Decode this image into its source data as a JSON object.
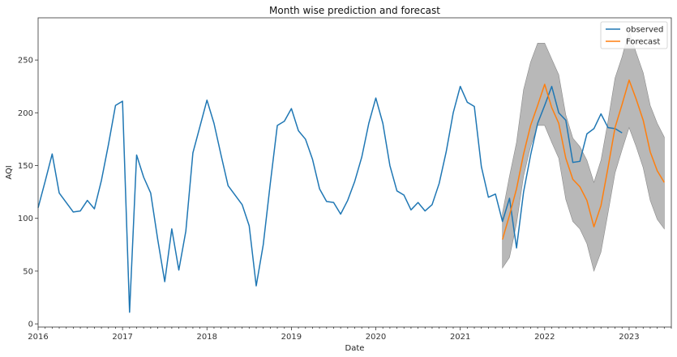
{
  "chart_data": {
    "type": "line",
    "title": "Month wise prediction and forecast",
    "xlabel": "Date",
    "ylabel": "AQI",
    "xlim": [
      "2016-01",
      "2023-07"
    ],
    "ylim": [
      -3,
      290
    ],
    "x_ticks": [
      "2016",
      "2017",
      "2018",
      "2019",
      "2020",
      "2021",
      "2022",
      "2023"
    ],
    "y_ticks": [
      "0",
      "50",
      "100",
      "150",
      "200",
      "250"
    ],
    "legend_position": "top-right",
    "colors": {
      "observed": "#1f77b4",
      "forecast": "#ff7f0e",
      "band": "#a0a0a0"
    },
    "series": [
      {
        "name": "observed",
        "x": [
          "2016-01",
          "2016-02",
          "2016-03",
          "2016-04",
          "2016-05",
          "2016-06",
          "2016-07",
          "2016-08",
          "2016-09",
          "2016-10",
          "2016-11",
          "2016-12",
          "2017-01",
          "2017-02",
          "2017-03",
          "2017-04",
          "2017-05",
          "2017-06",
          "2017-07",
          "2017-08",
          "2017-09",
          "2017-10",
          "2017-11",
          "2017-12",
          "2018-01",
          "2018-02",
          "2018-03",
          "2018-04",
          "2018-05",
          "2018-06",
          "2018-07",
          "2018-08",
          "2018-09",
          "2018-10",
          "2018-11",
          "2018-12",
          "2019-01",
          "2019-02",
          "2019-03",
          "2019-04",
          "2019-05",
          "2019-06",
          "2019-07",
          "2019-08",
          "2019-09",
          "2019-10",
          "2019-11",
          "2019-12",
          "2020-01",
          "2020-02",
          "2020-03",
          "2020-04",
          "2020-05",
          "2020-06",
          "2020-07",
          "2020-08",
          "2020-09",
          "2020-10",
          "2020-11",
          "2020-12",
          "2021-01",
          "2021-02",
          "2021-03",
          "2021-04",
          "2021-05",
          "2021-06",
          "2021-07",
          "2021-08",
          "2021-09",
          "2021-10",
          "2021-11",
          "2021-12",
          "2022-01",
          "2022-02",
          "2022-03",
          "2022-04",
          "2022-05",
          "2022-06",
          "2022-07",
          "2022-08",
          "2022-09",
          "2022-10",
          "2022-11",
          "2022-12"
        ],
        "values": [
          110,
          135,
          161,
          124,
          115,
          106,
          107,
          117,
          109,
          136,
          170,
          207,
          211,
          11,
          160,
          139,
          124,
          80,
          40,
          90,
          51,
          88,
          162,
          187,
          212,
          190,
          160,
          131,
          122,
          113,
          93,
          36,
          75,
          133,
          188,
          192,
          204,
          183,
          175,
          156,
          128,
          116,
          115,
          104,
          117,
          135,
          158,
          190,
          214,
          190,
          150,
          126,
          122,
          108,
          115,
          107,
          113,
          133,
          163,
          200,
          225,
          210,
          206,
          149,
          120,
          123,
          97,
          119,
          72,
          125,
          160,
          190,
          207,
          225,
          200,
          193,
          153,
          154,
          180,
          185,
          199,
          186,
          185,
          181
        ]
      },
      {
        "name": "Forecast",
        "x": [
          "2021-07",
          "2021-08",
          "2021-09",
          "2021-10",
          "2021-11",
          "2021-12",
          "2022-01",
          "2022-02",
          "2022-03",
          "2022-04",
          "2022-05",
          "2022-06",
          "2022-07",
          "2022-08",
          "2022-09",
          "2022-10",
          "2022-11",
          "2022-12",
          "2023-01",
          "2023-02",
          "2023-03",
          "2023-04",
          "2023-05",
          "2023-06"
        ],
        "values": [
          80,
          103,
          128,
          161,
          188,
          207,
          227,
          205,
          190,
          157,
          137,
          130,
          117,
          92,
          112,
          148,
          186,
          208,
          231,
          213,
          193,
          163,
          145,
          134
        ],
        "lower": [
          53,
          63,
          95,
          140,
          168,
          188,
          188,
          172,
          157,
          118,
          97,
          90,
          76,
          50,
          68,
          105,
          143,
          165,
          186,
          168,
          148,
          117,
          99,
          90
        ],
        "upper": [
          105,
          140,
          172,
          222,
          248,
          266,
          266,
          251,
          236,
          198,
          176,
          168,
          155,
          134,
          155,
          192,
          233,
          253,
          278,
          257,
          238,
          207,
          190,
          177
        ]
      }
    ]
  }
}
